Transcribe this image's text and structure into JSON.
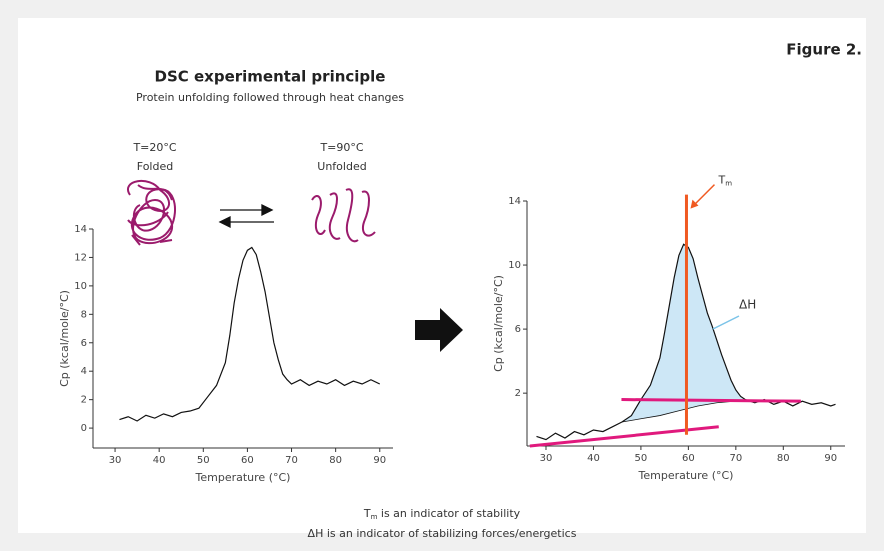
{
  "figure_label": "Figure 2.",
  "title": "DSC experimental principle",
  "subtitle": "Protein unfolding followed through heat changes",
  "states": [
    {
      "temperature": "T=20°C",
      "label": "Folded"
    },
    {
      "temperature": "T=90°C",
      "label": "Unfolded"
    }
  ],
  "captions": [
    {
      "symbol": "T",
      "sub": "m",
      "text": " is an indicator of stability"
    },
    {
      "text": "ΔH is an indicator of stabilizing forces/energetics"
    }
  ],
  "chart_data": [
    {
      "type": "line",
      "xlabel": "Temperature (°C)",
      "ylabel": "Cp (kcal/mole/°C)",
      "xlim": [
        25,
        93
      ],
      "ylim": [
        -1.4,
        14
      ],
      "xticks": [
        30,
        40,
        50,
        60,
        70,
        80,
        90
      ],
      "yticks": [
        0,
        2,
        4,
        6,
        8,
        10,
        12,
        14
      ],
      "x": [
        31,
        33,
        35,
        37,
        39,
        41,
        43,
        45,
        47,
        49,
        51,
        53,
        55,
        56,
        57,
        58,
        59,
        60,
        61,
        62,
        63,
        64,
        65,
        66,
        67,
        68,
        69,
        70,
        72,
        74,
        76,
        78,
        80,
        82,
        84,
        86,
        88,
        90
      ],
      "values": [
        0.6,
        0.8,
        0.5,
        0.9,
        0.7,
        1.0,
        0.8,
        1.1,
        1.2,
        1.4,
        2.2,
        3.0,
        4.6,
        6.5,
        8.8,
        10.5,
        11.8,
        12.5,
        12.7,
        12.2,
        11.0,
        9.6,
        7.8,
        6.0,
        4.8,
        3.8,
        3.4,
        3.1,
        3.4,
        3.0,
        3.3,
        3.1,
        3.4,
        3.0,
        3.3,
        3.1,
        3.4,
        3.1
      ],
      "color": "#111111"
    },
    {
      "type": "line",
      "xlabel": "Temperature (°C)",
      "ylabel": "Cp (kcal/mole/°C)",
      "xlim": [
        26,
        93
      ],
      "ylim": [
        -1.3,
        14
      ],
      "xticks": [
        30,
        40,
        50,
        60,
        70,
        80,
        90
      ],
      "yticks": [
        2,
        6,
        10,
        14
      ],
      "x": [
        28,
        30,
        32,
        34,
        36,
        38,
        40,
        42,
        44,
        46,
        48,
        50,
        52,
        54,
        55,
        56,
        57,
        58,
        59,
        60,
        61,
        62,
        63,
        64,
        65,
        66,
        67,
        68,
        69,
        70,
        71,
        72,
        74,
        76,
        78,
        80,
        82,
        84,
        86,
        88,
        90,
        91
      ],
      "values": [
        -0.7,
        -0.9,
        -0.5,
        -0.8,
        -0.4,
        -0.6,
        -0.3,
        -0.4,
        -0.1,
        0.2,
        0.6,
        1.6,
        2.5,
        4.2,
        5.8,
        7.5,
        9.2,
        10.6,
        11.3,
        11.1,
        10.4,
        9.2,
        8.1,
        7.0,
        6.2,
        5.3,
        4.4,
        3.6,
        2.8,
        2.2,
        1.8,
        1.6,
        1.4,
        1.6,
        1.3,
        1.5,
        1.2,
        1.5,
        1.3,
        1.4,
        1.2,
        1.3
      ],
      "color": "#111111",
      "baseline": {
        "x": [
          46,
          50,
          54,
          58,
          62,
          66,
          70,
          74
        ],
        "values": [
          0.2,
          0.4,
          0.6,
          0.9,
          1.2,
          1.4,
          1.5,
          1.5
        ],
        "color": "#111111"
      },
      "area_color": "#cde7f6",
      "area_label": "ΔH",
      "pre_baseline": {
        "x": [
          26.6,
          66.4
        ],
        "values": [
          -1.3,
          -0.1
        ],
        "color": "#e0197d"
      },
      "post_baseline": {
        "x": [
          45.9,
          83.7
        ],
        "values": [
          1.6,
          1.5
        ],
        "color": "#e0197d"
      },
      "tm": {
        "x": 59.6,
        "ymin": -0.6,
        "ymax": 14.4,
        "color": "#f05a22",
        "symbol": "T",
        "sub": "m"
      }
    }
  ]
}
